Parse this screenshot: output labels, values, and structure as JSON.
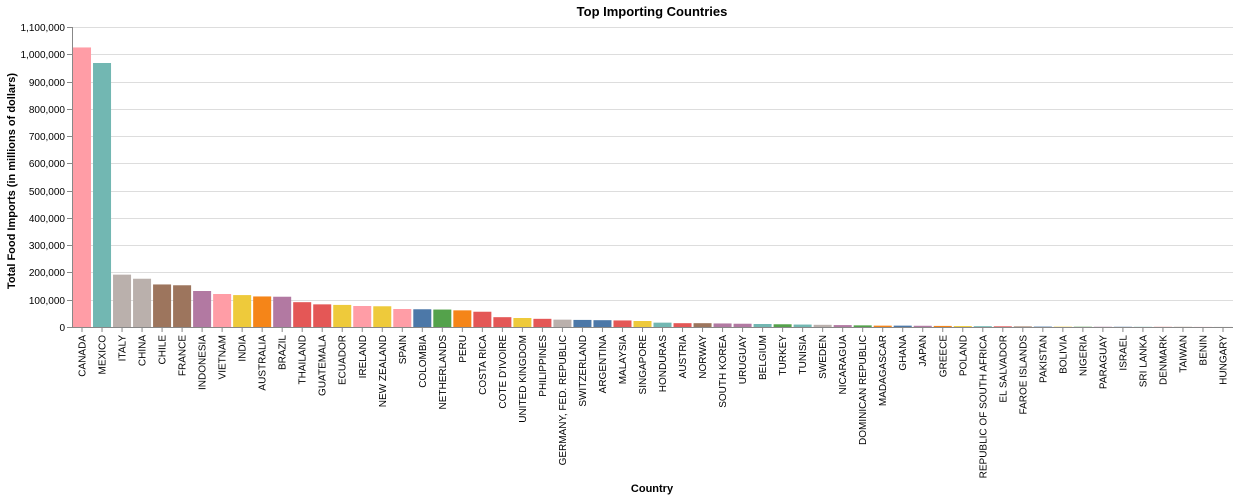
{
  "chart_data": {
    "type": "bar",
    "title": "Top Importing Countries",
    "xlabel": "Country",
    "ylabel": "Total Food Imports (in millions of dollars)",
    "ylim": [
      0,
      1100000
    ],
    "yticks": [
      "0",
      "100,000",
      "200,000",
      "300,000",
      "400,000",
      "500,000",
      "600,000",
      "700,000",
      "800,000",
      "900,000",
      "1,000,000",
      "1,100,000"
    ],
    "grid": true,
    "categories": [
      "CANADA",
      "MEXICO",
      "ITALY",
      "CHINA",
      "CHILE",
      "FRANCE",
      "INDONESIA",
      "VIETNAM",
      "INDIA",
      "AUSTRALIA",
      "BRAZIL",
      "THAILAND",
      "GUATEMALA",
      "ECUADOR",
      "IRELAND",
      "NEW ZEALAND",
      "SPAIN",
      "COLOMBIA",
      "NETHERLANDS",
      "PERU",
      "COSTA RICA",
      "COTE D'IVOIRE",
      "UNITED KINGDOM",
      "PHILIPPINES",
      "GERMANY, FED. REPUBLIC",
      "SWITZERLAND",
      "ARGENTINA",
      "MALAYSIA",
      "SINGAPORE",
      "HONDURAS",
      "AUSTRIA",
      "NORWAY",
      "SOUTH KOREA",
      "URUGUAY",
      "BELGIUM",
      "TURKEY",
      "TUNISIA",
      "SWEDEN",
      "NICARAGUA",
      "DOMINICAN REPUBLIC",
      "MADAGASCAR",
      "GHANA",
      "JAPAN",
      "GREECE",
      "POLAND",
      "REPUBLIC OF SOUTH AFRICA",
      "EL SALVADOR",
      "FAROE ISLANDS",
      "PAKISTAN",
      "BOLIVIA",
      "NIGERIA",
      "PARAGUAY",
      "ISRAEL",
      "SRI LANKA",
      "DENMARK",
      "TAIWAN",
      "BENIN",
      "HUNGARY"
    ],
    "values": [
      1025000,
      968000,
      192000,
      177000,
      156000,
      153000,
      132000,
      121000,
      117000,
      112000,
      111000,
      91000,
      83000,
      81000,
      77000,
      76000,
      66000,
      65000,
      64000,
      61000,
      56000,
      36000,
      33000,
      30000,
      27000,
      26000,
      25000,
      24000,
      22000,
      16000,
      14000,
      14000,
      13000,
      12000,
      11000,
      10000,
      9000,
      8000,
      7000,
      6000,
      5000,
      5000,
      4500,
      4000,
      3500,
      3000,
      2500,
      2000,
      1500,
      1200,
      1000,
      900,
      800,
      700,
      600,
      500,
      400,
      300
    ],
    "colors": [
      "#ff9da6",
      "#72b7b2",
      "#bab0ac",
      "#bab0ac",
      "#9d755d",
      "#9d755d",
      "#b279a2",
      "#ff9da6",
      "#eeca3b",
      "#f58518",
      "#b279a2",
      "#e45756",
      "#e45756",
      "#eeca3b",
      "#ff9da6",
      "#eeca3b",
      "#ff9da6",
      "#4c78a8",
      "#54a24b",
      "#f58518",
      "#e45756",
      "#e45756",
      "#eeca3b",
      "#e45756",
      "#bab0ac",
      "#4c78a8",
      "#4c78a8",
      "#e45756",
      "#eeca3b",
      "#72b7b2",
      "#e45756",
      "#9d755d",
      "#b279a2",
      "#b279a2",
      "#72b7b2",
      "#54a24b",
      "#72b7b2",
      "#bab0ac",
      "#b279a2",
      "#54a24b",
      "#f58518",
      "#4c78a8",
      "#b279a2",
      "#f58518",
      "#eeca3b",
      "#72b7b2",
      "#e45756",
      "#9d755d",
      "#4c78a8",
      "#eeca3b",
      "#54a24b",
      "#b279a2",
      "#4c78a8",
      "#72b7b2",
      "#e45756",
      "#9d755d",
      "#ff9da6",
      "#bab0ac"
    ]
  }
}
